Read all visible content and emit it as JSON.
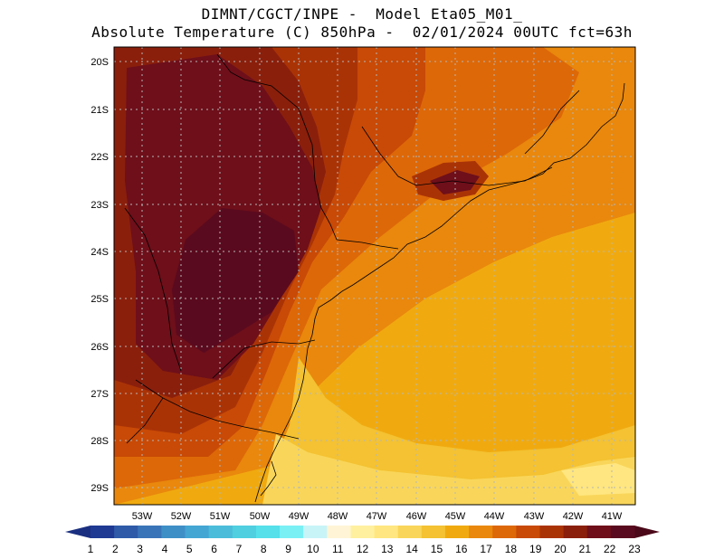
{
  "header": {
    "line1": "DIMNT/CGCT/INPE -  Model Eta05_M01_",
    "line2": "Absolute Temperature (C) 850hPa -  02/01/2024 00UTC fct=63h"
  },
  "map": {
    "variable": "Absolute Temperature",
    "units": "C",
    "level": "850hPa",
    "lat_range": [
      -29.4,
      -19.8
    ],
    "lon_range": [
      -53.6,
      -40.6
    ],
    "lat_ticks": [
      "20S",
      "21S",
      "22S",
      "23S",
      "24S",
      "25S",
      "26S",
      "27S",
      "28S",
      "29S"
    ],
    "lon_ticks": [
      "53W",
      "52W",
      "51W",
      "50W",
      "49W",
      "48W",
      "47W",
      "46W",
      "45W",
      "44W",
      "43W",
      "42W",
      "41W"
    ]
  },
  "colorbar": {
    "labels": [
      "1",
      "2",
      "3",
      "4",
      "5",
      "6",
      "7",
      "8",
      "9",
      "10",
      "11",
      "12",
      "13",
      "14",
      "15",
      "16",
      "17",
      "18",
      "19",
      "20",
      "21",
      "22",
      "23"
    ],
    "colors": [
      "#1f3a93",
      "#2e5aa8",
      "#3a74b8",
      "#3f8fc7",
      "#44a6d3",
      "#4bbcd9",
      "#4fcfe0",
      "#55e0ea",
      "#7af0f5",
      "#c8f4f8",
      "#fff5d6",
      "#fff0a0",
      "#ffe680",
      "#f9d65a",
      "#f4c232",
      "#f0aa10",
      "#e9880c",
      "#dd6808",
      "#c84a06",
      "#aa3306",
      "#8a1f0c",
      "#6e0f1a",
      "#5a0a1e"
    ],
    "left_arrow_color": "#1a2f80",
    "right_arrow_color": "#4a0818"
  }
}
